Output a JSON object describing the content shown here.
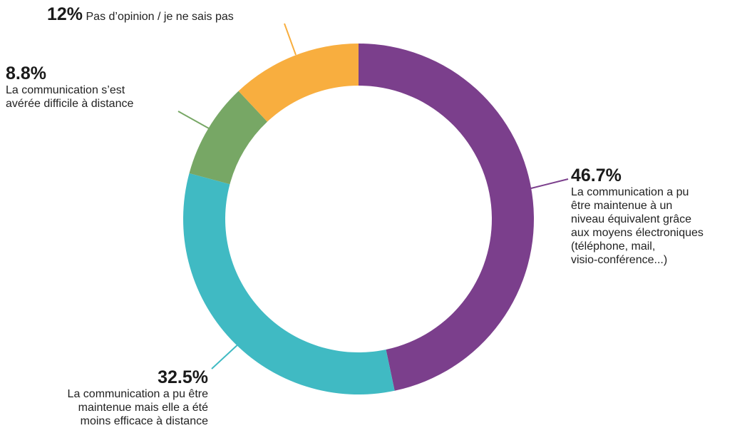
{
  "chart_data": {
    "type": "pie",
    "slices": [
      {
        "value": 46.7,
        "percent_label": "46.7%",
        "label_lines": [
          "La communication a pu",
          "être maintenue à un",
          "niveau équivalent grâce",
          "aux moyens électroniques",
          "(téléphone, mail,",
          "visio-conférence...)"
        ],
        "color": "#7b3f8c"
      },
      {
        "value": 32.5,
        "percent_label": "32.5%",
        "label_lines": [
          "La communication a pu être",
          "maintenue mais elle a été",
          "moins efficace à distance"
        ],
        "color": "#40bac3"
      },
      {
        "value": 8.8,
        "percent_label": "8.8%",
        "label_lines": [
          "La communication s’est",
          "avérée difficile à distance"
        ],
        "color": "#77a765"
      },
      {
        "value": 12,
        "percent_label": "12%",
        "label_lines": [
          "Pas d’opinion / je ne sais pas"
        ],
        "color": "#f8ae3f"
      }
    ],
    "donut": true
  }
}
